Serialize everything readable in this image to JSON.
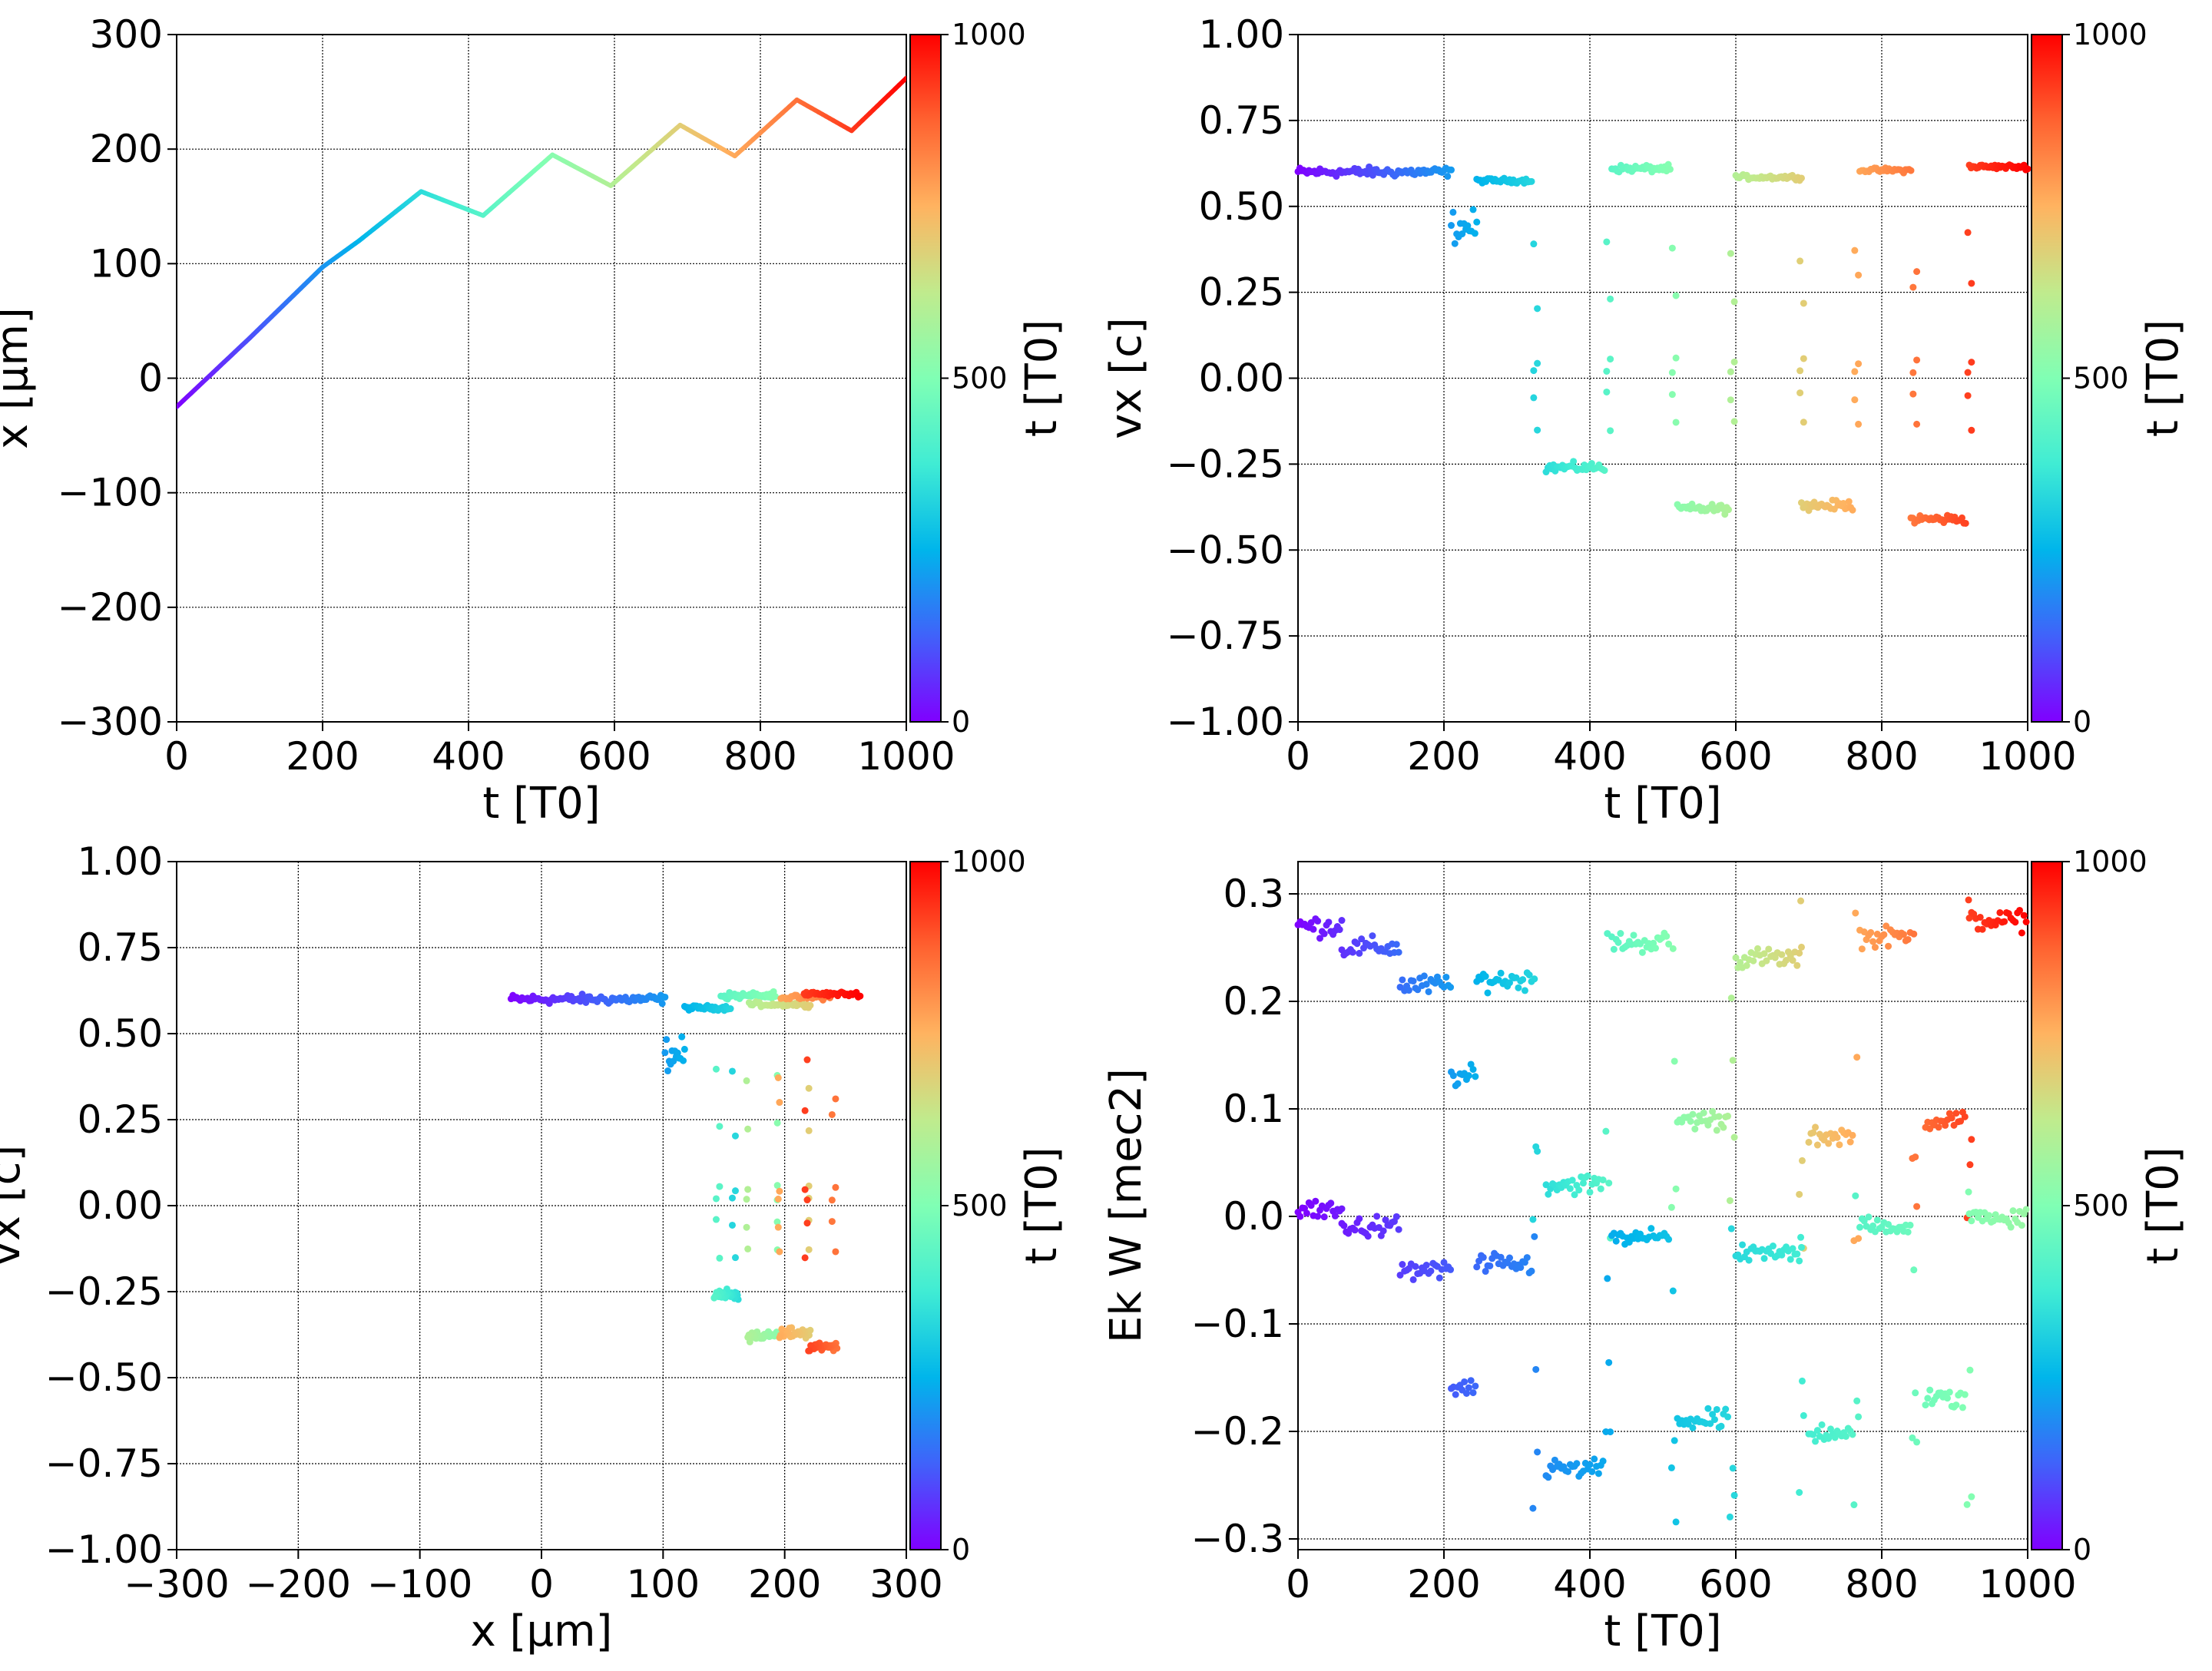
{
  "colormap": [
    "#8000ff",
    "#4062fa",
    "#00b5eb",
    "#40ecd4",
    "#80ffb4",
    "#c0eb8d",
    "#ffb360",
    "#ff6230",
    "#ff0000"
  ],
  "charts": {
    "a": {
      "xlabel": "t   [T0]",
      "ylabel": "x   [μm]",
      "x_ticks": [
        "0",
        "200",
        "400",
        "600",
        "800",
        "1000"
      ],
      "y_ticks": [
        "−300",
        "−200",
        "−100",
        "0",
        "100",
        "200",
        "300"
      ],
      "cbar_label": "t [T0]",
      "cbar_ticks": [
        "0",
        "500",
        "1000"
      ]
    },
    "b": {
      "xlabel": "t [T0]",
      "ylabel": "vx [c]",
      "x_ticks": [
        "0",
        "200",
        "400",
        "600",
        "800",
        "1000"
      ],
      "y_ticks": [
        "−1.00",
        "−0.75",
        "−0.50",
        "−0.25",
        "0.00",
        "0.25",
        "0.50",
        "0.75",
        "1.00"
      ],
      "cbar_label": "t [T0]",
      "cbar_ticks": [
        "0",
        "500",
        "1000"
      ]
    },
    "c": {
      "xlabel": "x [μm]",
      "ylabel": "vx [c]",
      "x_ticks": [
        "−300",
        "−200",
        "−100",
        "0",
        "100",
        "200",
        "300"
      ],
      "y_ticks": [
        "−1.00",
        "−0.75",
        "−0.50",
        "−0.25",
        "0.00",
        "0.25",
        "0.50",
        "0.75",
        "1.00"
      ],
      "cbar_label": "t [T0]",
      "cbar_ticks": [
        "0",
        "500",
        "1000"
      ]
    },
    "d": {
      "xlabel": "t [T0]",
      "ylabel": "Ek W [mec2]",
      "x_ticks": [
        "0",
        "200",
        "400",
        "600",
        "800",
        "1000"
      ],
      "y_ticks": [
        "−0.3",
        "−0.2",
        "−0.1",
        "0.0",
        "0.1",
        "0.2",
        "0.3"
      ],
      "cbar_label": "t [T0]",
      "cbar_ticks": [
        "0",
        "500",
        "1000"
      ]
    }
  },
  "chart_data": [
    {
      "id": "a",
      "type": "line",
      "colored_by": "t",
      "xlabel": "t [T0]",
      "ylabel": "x [μm]",
      "xlim": [
        0,
        1000
      ],
      "ylim": [
        -300,
        300
      ],
      "grid": true,
      "x": [
        0,
        100,
        200,
        250,
        335,
        420,
        515,
        595,
        690,
        765,
        850,
        925,
        1000
      ],
      "y": [
        -25,
        35,
        97,
        120,
        163,
        142,
        195,
        168,
        221,
        194,
        243,
        216,
        262
      ]
    },
    {
      "id": "b",
      "type": "scatter",
      "colored_by": "t",
      "xlabel": "t [T0]",
      "ylabel": "vx [c]",
      "xlim": [
        0,
        1000
      ],
      "ylim": [
        -1,
        1
      ],
      "grid": true,
      "segments": [
        {
          "t": [
            0,
            210
          ],
          "vx": 0.6,
          "noise": 0.02
        },
        {
          "t": [
            210,
            245
          ],
          "vx": 0.44,
          "noise": 0.05
        },
        {
          "t": [
            245,
            320
          ],
          "vx": 0.575,
          "noise": 0.01
        },
        {
          "t": [
            340,
            420
          ],
          "vx": -0.26,
          "noise": 0.02
        },
        {
          "t": [
            430,
            510
          ],
          "vx": 0.61,
          "noise": 0.015
        },
        {
          "t": [
            520,
            590
          ],
          "vx": -0.38,
          "noise": 0.02
        },
        {
          "t": [
            600,
            690
          ],
          "vx": 0.585,
          "noise": 0.01
        },
        {
          "t": [
            690,
            760
          ],
          "vx": -0.37,
          "noise": 0.02
        },
        {
          "t": [
            770,
            840
          ],
          "vx": 0.605,
          "noise": 0.01
        },
        {
          "t": [
            840,
            915
          ],
          "vx": -0.41,
          "noise": 0.02
        },
        {
          "t": [
            920,
            1000
          ],
          "vx": 0.615,
          "noise": 0.01
        }
      ],
      "transitions": [
        325,
        425,
        515,
        595,
        690,
        765,
        845,
        920
      ]
    },
    {
      "id": "c",
      "type": "scatter",
      "colored_by": "t",
      "xlabel": "x [μm]",
      "ylabel": "vx [c]",
      "xlim": [
        -300,
        300
      ],
      "ylim": [
        -1,
        1
      ],
      "grid": true,
      "note": "same trajectory as panels a and b, vx plotted against x"
    },
    {
      "id": "d",
      "type": "scatter",
      "colored_by": "t",
      "xlabel": "t [T0]",
      "ylabel": "Ek W [mec2]",
      "xlim": [
        0,
        1000
      ],
      "ylim": [
        -0.31,
        0.33
      ],
      "grid": true,
      "series": [
        {
          "name": "Ek",
          "levels": [
            0.27,
            0.25,
            0.215,
            0.13,
            0.22,
            0.03,
            0.255,
            0.09,
            0.24,
            0.075,
            0.26,
            0.09,
            0.275
          ]
        },
        {
          "name": "W",
          "levels": [
            0.005,
            -0.01,
            -0.05,
            -0.16,
            -0.045,
            -0.235,
            -0.02,
            -0.19,
            -0.035,
            -0.2,
            -0.01,
            -0.17,
            0.0
          ]
        }
      ],
      "segment_t": [
        [
          0,
          60
        ],
        [
          60,
          140
        ],
        [
          140,
          210
        ],
        [
          210,
          245
        ],
        [
          245,
          320
        ],
        [
          340,
          420
        ],
        [
          430,
          510
        ],
        [
          520,
          590
        ],
        [
          600,
          690
        ],
        [
          700,
          760
        ],
        [
          770,
          840
        ],
        [
          860,
          915
        ],
        [
          920,
          1000
        ]
      ]
    }
  ]
}
